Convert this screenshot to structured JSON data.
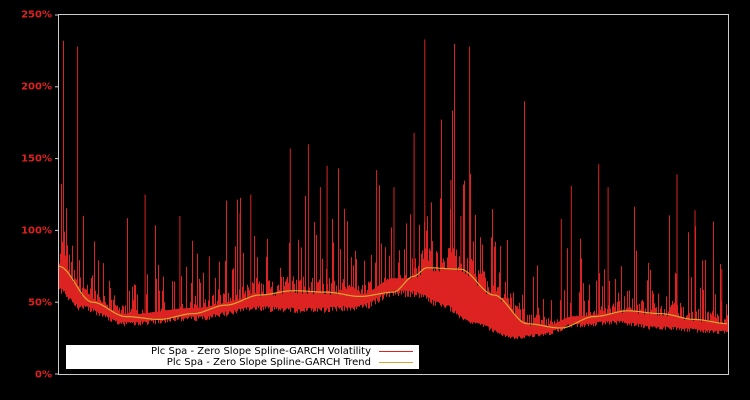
{
  "chart_data": {
    "type": "line",
    "title": "",
    "xlabel": "",
    "ylabel": "",
    "ylim": [
      0,
      250
    ],
    "y_ticks": [
      "0%",
      "50%",
      "100%",
      "150%",
      "200%",
      "250%"
    ],
    "y_tick_values": [
      0,
      50,
      100,
      150,
      200,
      250
    ],
    "grid": false,
    "legend_position": "lower-left inside plot",
    "series": [
      {
        "name": "Plc Spa - Zero Slope Spline-GARCH Volatility",
        "color": "#dd2222",
        "style": "dense spiky line",
        "baseline_x_frac": [
          0.0,
          0.03,
          0.1,
          0.2,
          0.3,
          0.38,
          0.45,
          0.5,
          0.53,
          0.57,
          0.62,
          0.68,
          0.72,
          0.77,
          0.83,
          0.9,
          1.0
        ],
        "baseline_values": [
          60,
          48,
          36,
          40,
          47,
          46,
          48,
          58,
          58,
          50,
          36,
          26,
          28,
          35,
          37,
          33,
          30
        ],
        "spikes": [
          {
            "x_frac": 0.006,
            "value": 232
          },
          {
            "x_frac": 0.027,
            "value": 228
          },
          {
            "x_frac": 0.128,
            "value": 125
          },
          {
            "x_frac": 0.148,
            "value": 76
          },
          {
            "x_frac": 0.18,
            "value": 110
          },
          {
            "x_frac": 0.224,
            "value": 82
          },
          {
            "x_frac": 0.27,
            "value": 112
          },
          {
            "x_frac": 0.286,
            "value": 125
          },
          {
            "x_frac": 0.345,
            "value": 157
          },
          {
            "x_frac": 0.372,
            "value": 160
          },
          {
            "x_frac": 0.39,
            "value": 130
          },
          {
            "x_frac": 0.4,
            "value": 145
          },
          {
            "x_frac": 0.474,
            "value": 142
          },
          {
            "x_frac": 0.5,
            "value": 130
          },
          {
            "x_frac": 0.53,
            "value": 168
          },
          {
            "x_frac": 0.546,
            "value": 233
          },
          {
            "x_frac": 0.57,
            "value": 112
          },
          {
            "x_frac": 0.585,
            "value": 135
          },
          {
            "x_frac": 0.6,
            "value": 110
          },
          {
            "x_frac": 0.613,
            "value": 228
          },
          {
            "x_frac": 0.695,
            "value": 190
          },
          {
            "x_frac": 0.75,
            "value": 108
          },
          {
            "x_frac": 0.765,
            "value": 131
          },
          {
            "x_frac": 0.806,
            "value": 146
          },
          {
            "x_frac": 0.82,
            "value": 130
          },
          {
            "x_frac": 0.923,
            "value": 139
          },
          {
            "x_frac": 0.95,
            "value": 114
          },
          {
            "x_frac": 0.99,
            "value": 73
          }
        ]
      },
      {
        "name": "Plc Spa - Zero Slope Spline-GARCH Trend",
        "color": "#d4a830",
        "style": "smooth line",
        "x_frac": [
          0.0,
          0.05,
          0.1,
          0.15,
          0.2,
          0.25,
          0.3,
          0.35,
          0.4,
          0.45,
          0.5,
          0.53,
          0.55,
          0.6,
          0.65,
          0.7,
          0.75,
          0.8,
          0.85,
          0.9,
          0.95,
          1.0
        ],
        "values": [
          75,
          50,
          40,
          38,
          42,
          48,
          55,
          58,
          57,
          54,
          57,
          68,
          74,
          73,
          55,
          35,
          32,
          40,
          44,
          42,
          38,
          35
        ]
      }
    ]
  },
  "legend": {
    "items": [
      {
        "label": "Plc Spa - Zero Slope Spline-GARCH Volatility",
        "color": "#dd2222"
      },
      {
        "label": "Plc Spa - Zero Slope Spline-GARCH Trend",
        "color": "#d4a830"
      }
    ]
  },
  "axis": {
    "y_labels": [
      "250%",
      "200%",
      "150%",
      "100%",
      "50%",
      "0%"
    ]
  }
}
